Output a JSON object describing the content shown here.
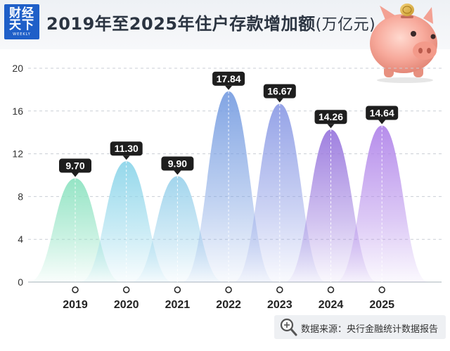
{
  "logo": {
    "line1": "财经",
    "line2": "天下",
    "line3": "WEEKLY"
  },
  "title": {
    "main": "2019年至2025年住户存款增加额",
    "unit": "(万亿元)"
  },
  "source_note": "数据来源：央行金融统计数据报告",
  "icons": {
    "logo": "logo-icon",
    "piggy": "piggy-bank-icon",
    "magnifier": "magnifier-icon"
  },
  "colors": [
    "#8fe3c2",
    "#8fd6ea",
    "#9dd3ec",
    "#7ba0e2",
    "#8f9ee6",
    "#9a79de",
    "#b287ea"
  ],
  "chart_data": {
    "type": "area",
    "categories": [
      "2019",
      "2020",
      "2021",
      "2022",
      "2023",
      "2024",
      "2025"
    ],
    "values": [
      9.7,
      11.3,
      9.9,
      17.84,
      16.67,
      14.26,
      14.64
    ],
    "data_labels": [
      "9.70",
      "11.30",
      "9.90",
      "17.84",
      "16.67",
      "14.26",
      "14.64"
    ],
    "yticks": [
      "0",
      "4",
      "8",
      "12",
      "16",
      "20"
    ],
    "ylim": [
      0,
      20
    ],
    "grid": true,
    "title": "2019年至2025年住户存款增加额(万亿元)"
  }
}
